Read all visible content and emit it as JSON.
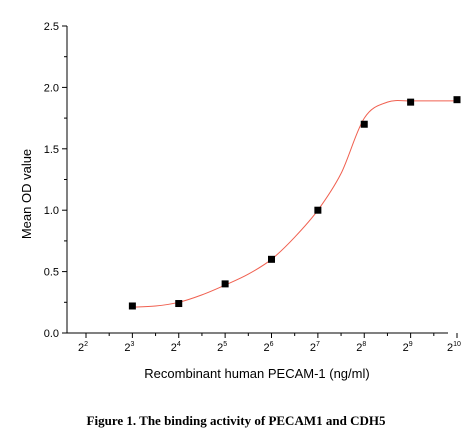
{
  "chart_data": {
    "type": "scatter",
    "caption": "Figure 1. The binding activity of PECAM1 and CDH5",
    "xlabel": "Recombinant human PECAM-1 (ng/ml)",
    "ylabel": "Mean OD value",
    "x_scale": "log2",
    "x_ticks": [
      {
        "base": "2",
        "exp": "2"
      },
      {
        "base": "2",
        "exp": "3"
      },
      {
        "base": "2",
        "exp": "4"
      },
      {
        "base": "2",
        "exp": "5"
      },
      {
        "base": "2",
        "exp": "6"
      },
      {
        "base": "2",
        "exp": "7"
      },
      {
        "base": "2",
        "exp": "8"
      },
      {
        "base": "2",
        "exp": "9"
      },
      {
        "base": "2",
        "exp": "10"
      }
    ],
    "y_ticks": [
      "0.0",
      "0.5",
      "1.0",
      "1.5",
      "2.0",
      "2.5"
    ],
    "xlim": [
      4,
      1024
    ],
    "ylim": [
      0,
      2.5
    ],
    "series": [
      {
        "marker": "square",
        "color": "#000000",
        "x": [
          8,
          16,
          32,
          64,
          128,
          256,
          512,
          1024
        ],
        "y": [
          0.22,
          0.24,
          0.4,
          0.6,
          1.0,
          1.7,
          1.88,
          1.9
        ]
      }
    ],
    "fit_curve": {
      "type": "sigmoid",
      "color": "#f06050",
      "x": [
        8,
        11.3,
        16,
        22.6,
        32,
        45.3,
        64,
        90.5,
        128,
        181,
        256,
        362,
        512,
        724,
        1024
      ],
      "y": [
        0.21,
        0.22,
        0.25,
        0.31,
        0.39,
        0.48,
        0.6,
        0.78,
        1.0,
        1.3,
        1.75,
        1.88,
        1.89,
        1.89,
        1.89
      ]
    },
    "grid": false
  }
}
